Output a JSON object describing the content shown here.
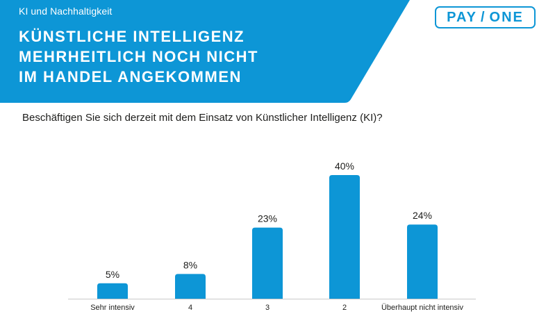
{
  "header": {
    "kicker": "KI und Nachhaltigkeit",
    "title_lines": [
      "Künstliche Intelligenz",
      "mehrheitlich noch nicht",
      "im Handel angekommen"
    ],
    "banner_color": "#0d96d6"
  },
  "logo": {
    "left": "PAY",
    "right": "ONE",
    "color": "#0d96d6"
  },
  "question": "Beschäftigen Sie sich derzeit mit dem Einsatz von Künstlicher Intelligenz (KI)?",
  "chart_data": {
    "type": "bar",
    "title": "",
    "xlabel": "",
    "ylabel": "",
    "categories": [
      "Sehr intensiv",
      "4",
      "3",
      "2",
      "Überhaupt nicht intensiv"
    ],
    "values": [
      5,
      8,
      23,
      40,
      24
    ],
    "data_labels": [
      "5%",
      "8%",
      "23%",
      "40%",
      "24%"
    ],
    "ylim": [
      0,
      40
    ],
    "grid": false,
    "legend": "none",
    "bar_color": "#0d96d6"
  }
}
